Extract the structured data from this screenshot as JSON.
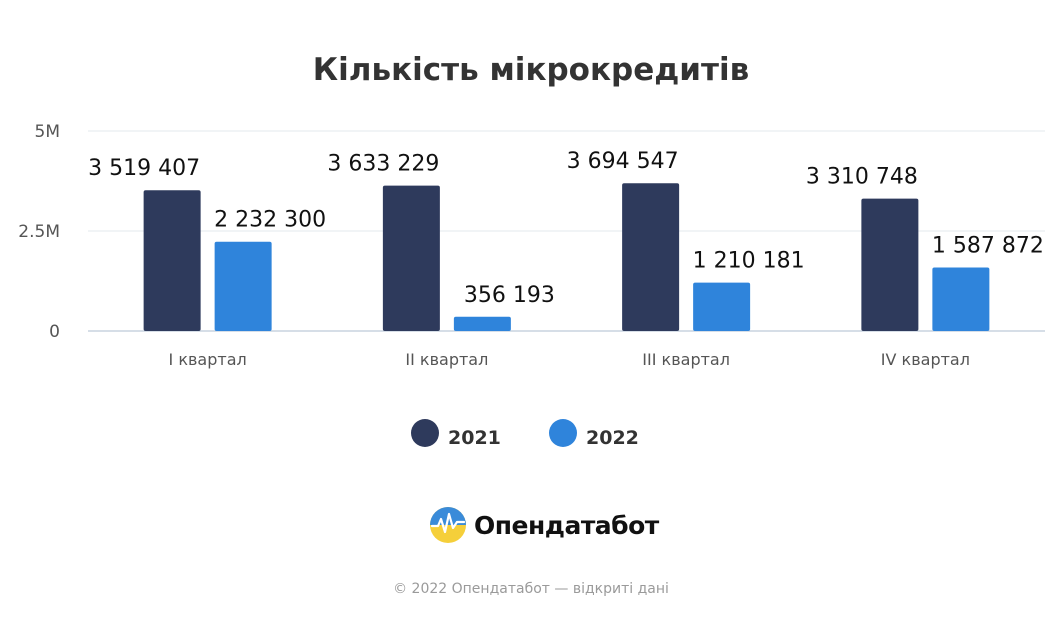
{
  "chart_data": {
    "type": "bar",
    "title": "Кількість мікрокредитів",
    "categories": [
      "I квартал",
      "II квартал",
      "III квартал",
      "IV квартал"
    ],
    "series": [
      {
        "name": "2021",
        "color": "#2e3a5c",
        "values": [
          3519407,
          3633229,
          3694547,
          3310748
        ],
        "labels": [
          "3 519 407",
          "3 633 229",
          "3 694 547",
          "3 310 748"
        ]
      },
      {
        "name": "2022",
        "color": "#2f84db",
        "values": [
          2232300,
          356193,
          1210181,
          1587872
        ],
        "labels": [
          "2 232 300",
          "356 193",
          "1 210 181",
          "1 587 872"
        ]
      }
    ],
    "ylim": [
      0,
      5000000
    ],
    "yticks": [
      0,
      2500000,
      5000000
    ],
    "ytick_labels": [
      "0",
      "2.5M",
      "5M"
    ],
    "grid": true,
    "legend": "bottom-center"
  },
  "brand": {
    "name": "Опендатабот",
    "logo": "opendatabot-logo-icon"
  },
  "footer": {
    "text": "© 2022 Опендатабот — відкриті дані"
  },
  "colors": {
    "axis": "#c8d3df",
    "grid": "#e3e8ee"
  }
}
